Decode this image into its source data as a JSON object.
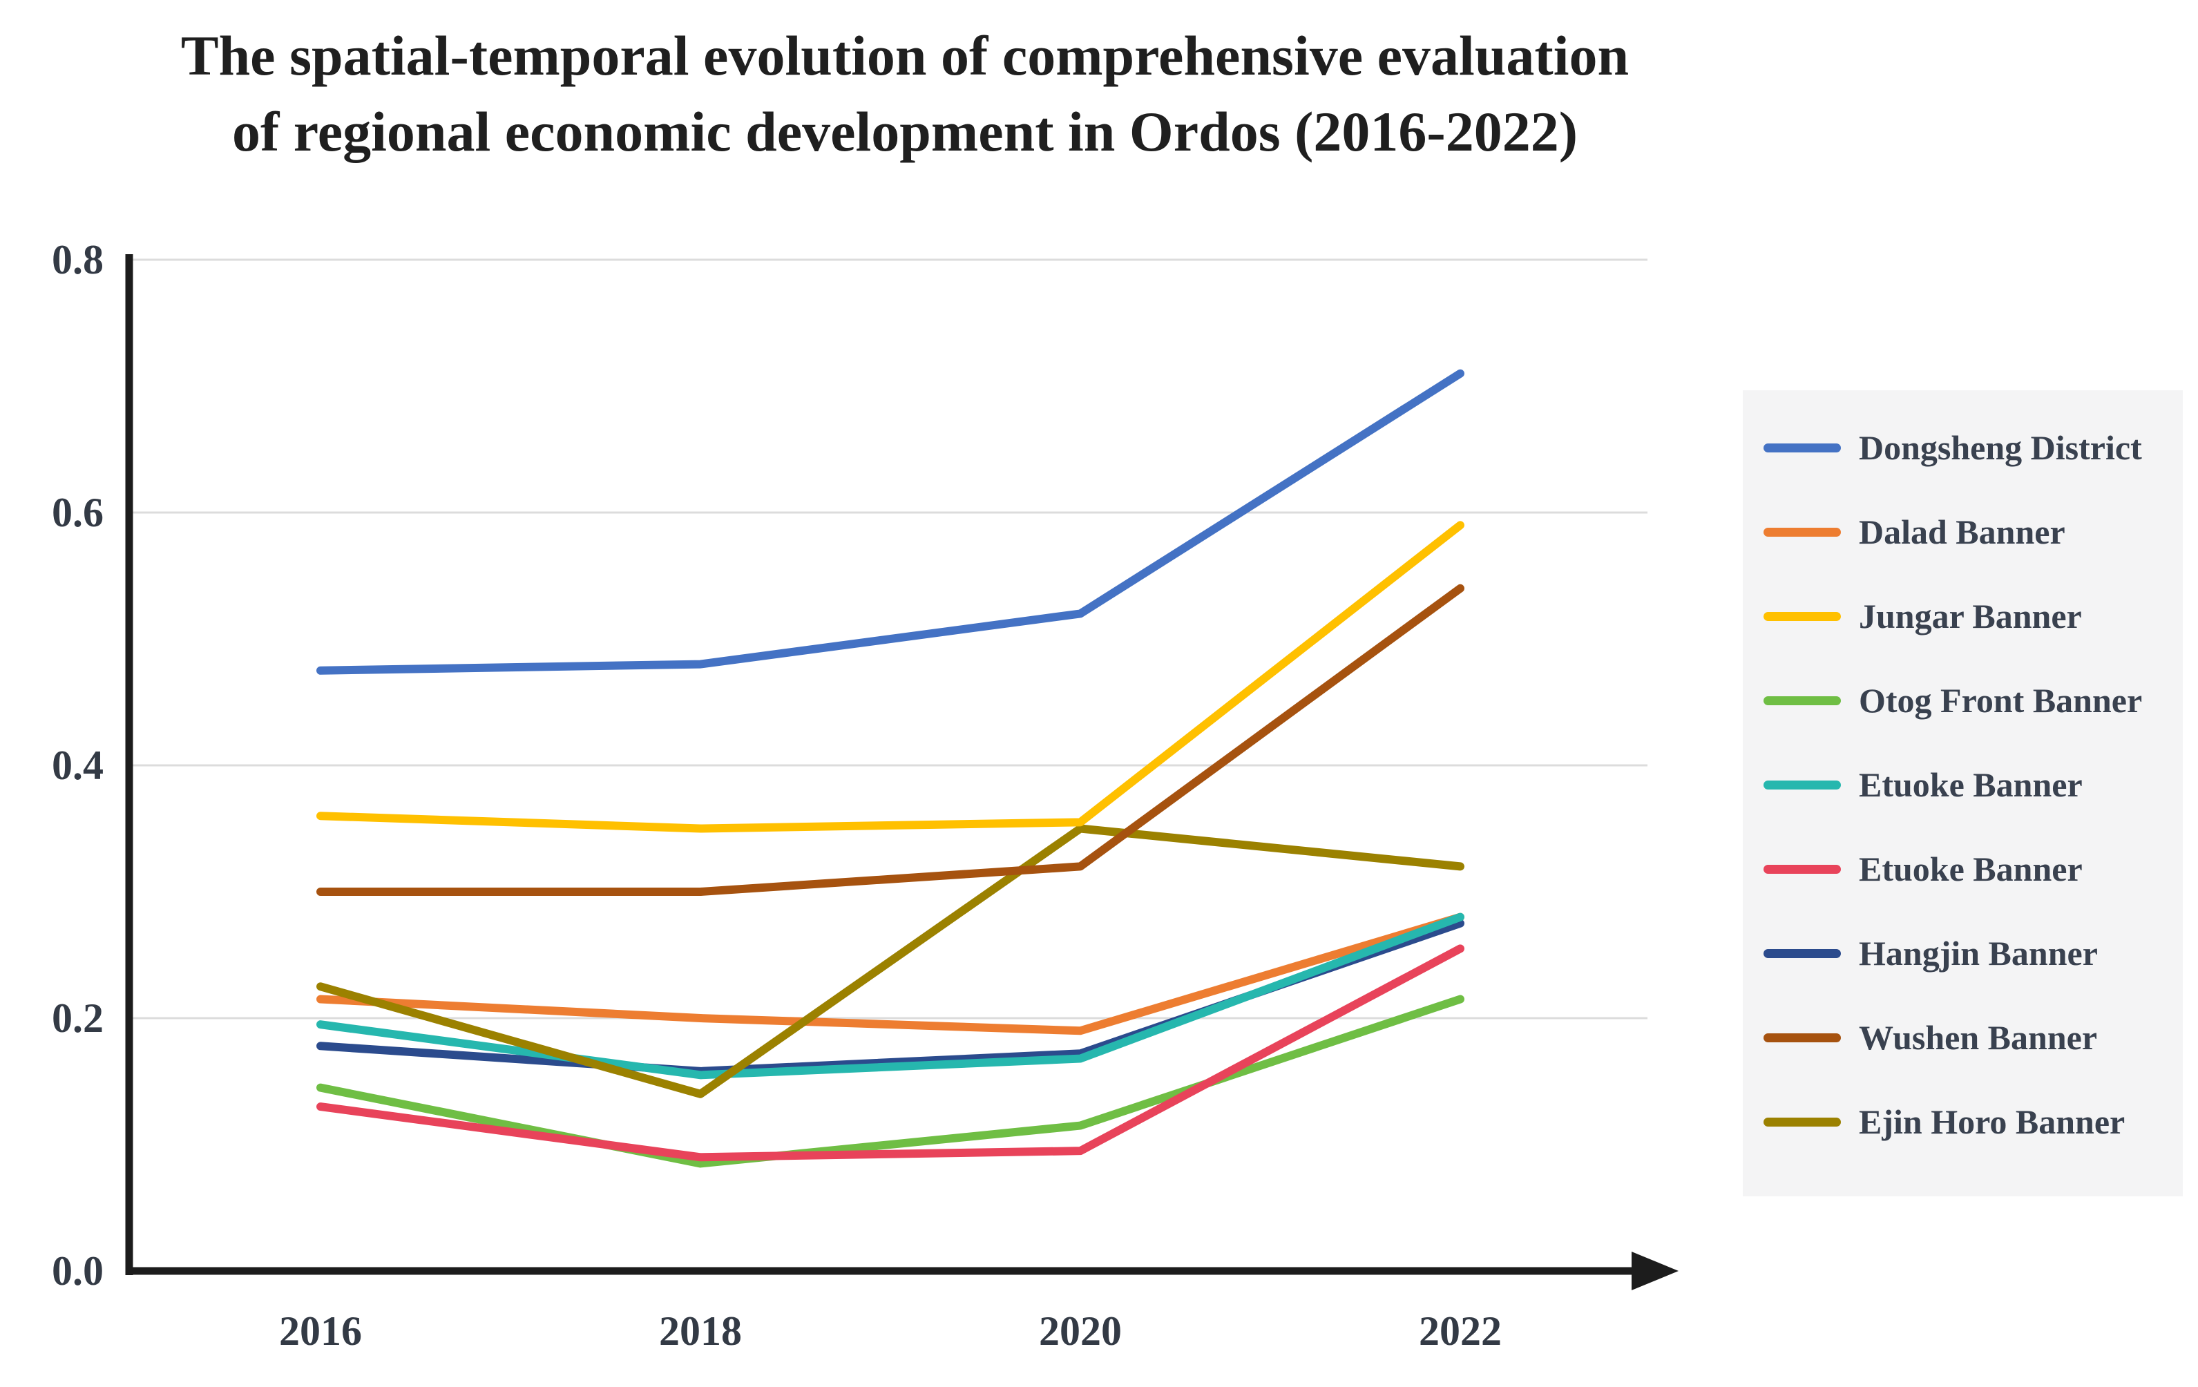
{
  "chart_data": {
    "type": "line",
    "title_line1": "The spatial-temporal evolution of comprehensive evaluation",
    "title_line2": "of regional economic development in Ordos (2016-2022)",
    "xlabel": "",
    "ylabel": "",
    "x": [
      2016,
      2018,
      2020,
      2022
    ],
    "x_tick_labels": [
      "2016",
      "2018",
      "2020",
      "2022"
    ],
    "y_ticks": [
      {
        "label": "0.0",
        "value": 0.0
      },
      {
        "label": "0.2",
        "value": 0.2
      },
      {
        "label": "0.4",
        "value": 0.4
      },
      {
        "label": "0.6",
        "value": 0.6
      },
      {
        "label": "0.8",
        "value": 0.8
      }
    ],
    "ylim": [
      0,
      0.8
    ],
    "grid": "horizontal",
    "legend_position": "right",
    "legend_bg": "#f4f4f5",
    "axis_color": "#1c1c1c",
    "grid_color": "#dcdcdc",
    "tick_label_color": "#333a45",
    "series": [
      {
        "name": "Dongsheng District",
        "color": "#4472c4",
        "values": [
          0.475,
          0.48,
          0.52,
          0.71
        ]
      },
      {
        "name": "Dalad Banner",
        "color": "#ed7d31",
        "values": [
          0.215,
          0.2,
          0.19,
          0.28
        ]
      },
      {
        "name": "Jungar Banner",
        "color": "#ffc000",
        "values": [
          0.36,
          0.35,
          0.355,
          0.59
        ]
      },
      {
        "name": "Otog Front Banner",
        "color": "#6fbe44",
        "values": [
          0.145,
          0.085,
          0.115,
          0.215
        ]
      },
      {
        "name": "Etuoke Banner",
        "color": "#26b7ae",
        "values": [
          0.195,
          0.155,
          0.168,
          0.28
        ]
      },
      {
        "name": "Etuoke Banner",
        "color": "#e8435a",
        "values": [
          0.13,
          0.09,
          0.095,
          0.255
        ]
      },
      {
        "name": "Hangjin Banner",
        "color": "#2b4b8d",
        "values": [
          0.178,
          0.158,
          0.172,
          0.275
        ]
      },
      {
        "name": "Wushen Banner",
        "color": "#a6520f",
        "values": [
          0.3,
          0.3,
          0.32,
          0.54
        ]
      },
      {
        "name": "Ejin Horo Banner",
        "color": "#9b8100",
        "values": [
          0.225,
          0.14,
          0.35,
          0.32
        ]
      }
    ],
    "draw_order": [
      1,
      3,
      5,
      6,
      4,
      8,
      7,
      2,
      0
    ]
  }
}
